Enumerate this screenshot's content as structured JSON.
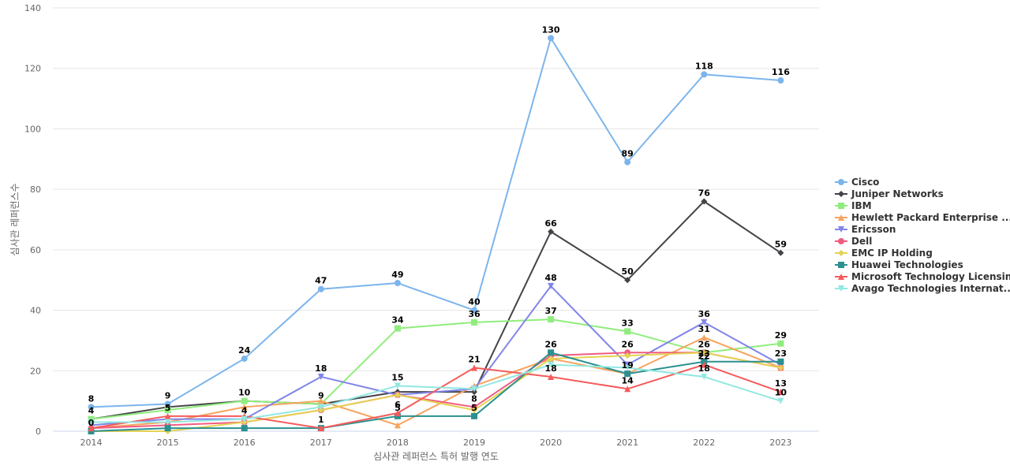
{
  "chart_data": {
    "type": "line",
    "xlabel": "심사관 레퍼런스 특허 발행 연도",
    "ylabel": "심사관 레퍼런스수",
    "ylim": [
      0,
      140
    ],
    "y_ticks": [
      0,
      20,
      40,
      60,
      80,
      100,
      120,
      140
    ],
    "grid": true,
    "legend_position": "right",
    "categories": [
      "2014",
      "2015",
      "2016",
      "2017",
      "2018",
      "2019",
      "2020",
      "2021",
      "2022",
      "2023"
    ],
    "series": [
      {
        "name": "Cisco",
        "color": "#7cb5ec",
        "marker": "circle",
        "values": [
          8,
          9,
          24,
          47,
          49,
          40,
          130,
          89,
          118,
          116
        ],
        "labels": [
          true,
          true,
          true,
          true,
          true,
          true,
          true,
          true,
          true,
          true
        ]
      },
      {
        "name": "Juniper Networks",
        "color": "#434348",
        "marker": "diamond",
        "values": [
          4,
          8,
          10,
          9,
          13,
          13,
          66,
          50,
          76,
          59
        ],
        "labels": [
          true,
          false,
          true,
          true,
          false,
          false,
          true,
          true,
          true,
          true
        ]
      },
      {
        "name": "IBM",
        "color": "#90ed7d",
        "marker": "square",
        "values": [
          4,
          7,
          10,
          9,
          34,
          36,
          37,
          33,
          26,
          29
        ],
        "labels": [
          false,
          false,
          false,
          false,
          true,
          true,
          true,
          true,
          true,
          true
        ]
      },
      {
        "name": "Hewlett Packard Enterprise ...",
        "color": "#f7a35c",
        "marker": "triangle",
        "values": [
          1,
          3,
          8,
          10,
          2,
          15,
          24,
          19,
          31,
          21
        ],
        "labels": [
          false,
          false,
          false,
          false,
          false,
          false,
          false,
          false,
          true,
          false
        ]
      },
      {
        "name": "Ericsson",
        "color": "#8085e9",
        "marker": "triangle-down",
        "values": [
          2,
          4,
          4,
          18,
          12,
          14,
          48,
          22,
          36,
          22
        ],
        "labels": [
          false,
          false,
          true,
          true,
          false,
          false,
          true,
          false,
          true,
          false
        ]
      },
      {
        "name": "Dell",
        "color": "#f15c80",
        "marker": "circle",
        "values": [
          1,
          2,
          3,
          7,
          12,
          8,
          25,
          26,
          26,
          21
        ],
        "labels": [
          false,
          false,
          false,
          false,
          false,
          true,
          false,
          true,
          false,
          false
        ]
      },
      {
        "name": "EMC IP Holding",
        "color": "#e4d354",
        "marker": "diamond",
        "values": [
          0,
          0,
          3,
          7,
          12,
          7,
          24,
          25,
          26,
          21
        ],
        "labels": [
          true,
          false,
          false,
          false,
          false,
          false,
          false,
          false,
          false,
          false
        ]
      },
      {
        "name": "Huawei Technologies",
        "color": "#2b908f",
        "marker": "square",
        "values": [
          0,
          1,
          1,
          1,
          5,
          5,
          26,
          19,
          23,
          23
        ],
        "labels": [
          false,
          false,
          false,
          true,
          true,
          true,
          true,
          true,
          true,
          true
        ]
      },
      {
        "name": "Microsoft Technology Licensing",
        "color": "#f45b5b",
        "marker": "triangle",
        "values": [
          1,
          5,
          5,
          1,
          6,
          21,
          18,
          14,
          22,
          13
        ],
        "labels": [
          false,
          true,
          false,
          false,
          true,
          true,
          true,
          true,
          true,
          true
        ]
      },
      {
        "name": "Avago Technologies Internat...",
        "color": "#91e8e1",
        "marker": "triangle-down",
        "values": [
          3,
          3,
          4,
          8,
          15,
          14,
          22,
          21,
          18,
          10
        ],
        "labels": [
          false,
          false,
          false,
          false,
          true,
          false,
          false,
          false,
          true,
          true
        ]
      }
    ]
  }
}
